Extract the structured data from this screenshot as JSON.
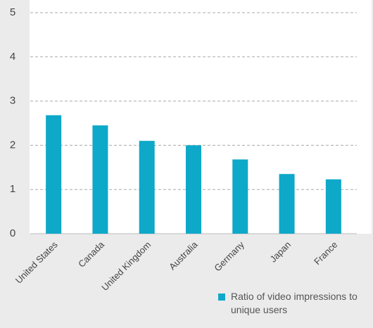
{
  "chart_data": {
    "type": "bar",
    "categories": [
      "United States",
      "Canada",
      "United Kingdom",
      "Australia",
      "Germany",
      "Japan",
      "France"
    ],
    "series": [
      {
        "name": "Ratio of video impressions to unique users",
        "color": "#0ea8c9",
        "values": [
          2.68,
          2.45,
          2.1,
          2.0,
          1.68,
          1.35,
          1.23
        ]
      }
    ],
    "ylim": [
      0,
      5
    ],
    "yticks": [
      0,
      1,
      2,
      3,
      4,
      5
    ],
    "grid": true,
    "legend": "bottom-right"
  }
}
